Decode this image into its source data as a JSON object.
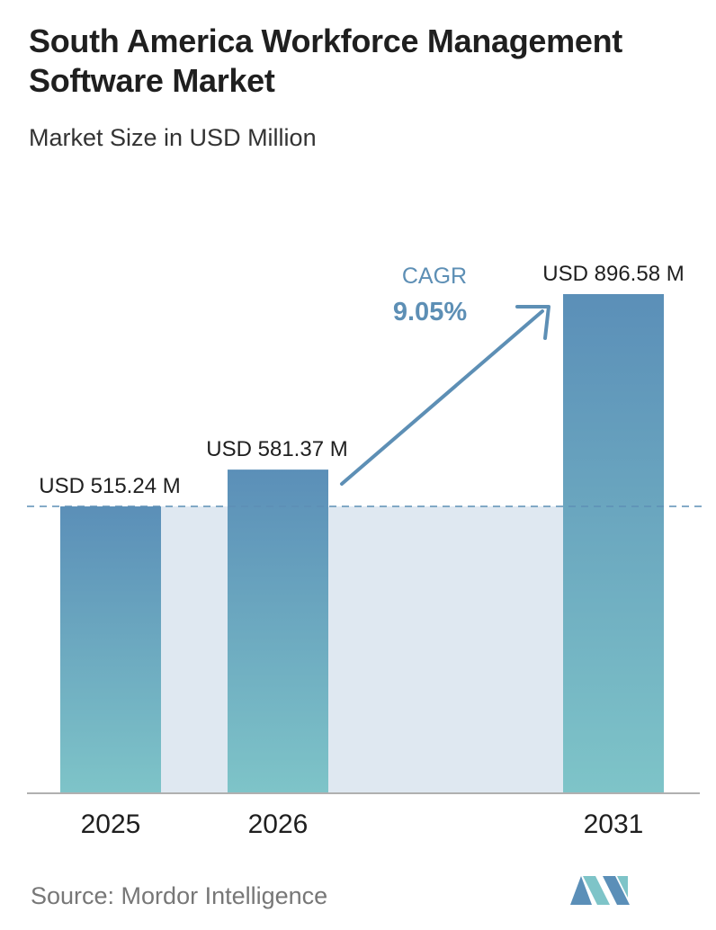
{
  "title": "South America Workforce Management Software Market",
  "subtitle": "Market Size in USD Million",
  "source": "Source: Mordor Intelligence",
  "colors": {
    "bar_top": "#5b8fb8",
    "bar_bottom": "#7ec4c8",
    "band": "#dfe8f1",
    "arrow": "#5d8fb5",
    "dashed": "#5d8fb5",
    "baseline": "#b0b0b0"
  },
  "cagr": {
    "label": "CAGR",
    "value": "9.05%"
  },
  "chart_data": {
    "type": "bar",
    "title": "South America Workforce Management Software Market",
    "subtitle": "Market Size in USD Million",
    "categories": [
      "2025",
      "2026",
      "2031"
    ],
    "values": [
      515.24,
      581.37,
      896.58
    ],
    "value_labels": [
      "USD 515.24 M",
      "USD 581.37 M",
      "USD 896.58 M"
    ],
    "ylim": [
      0,
      896.58
    ],
    "grid": false,
    "legend": "none"
  }
}
